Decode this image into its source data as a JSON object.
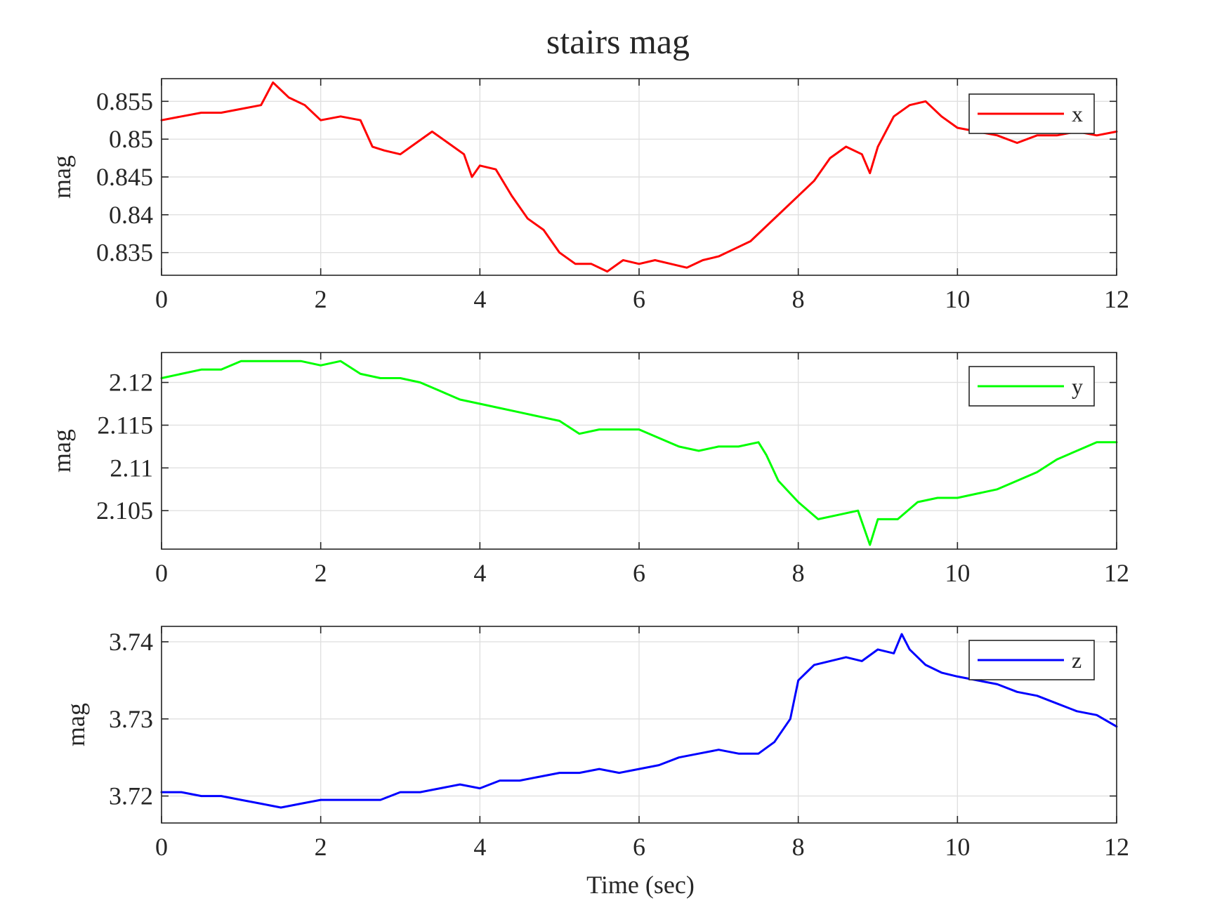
{
  "chart_data": [
    {
      "type": "line",
      "title": "stairs mag",
      "xlabel": "",
      "ylabel": "mag",
      "xlim": [
        0,
        12
      ],
      "ylim": [
        0.832,
        0.858
      ],
      "xticks": [
        "0",
        "2",
        "4",
        "6",
        "8",
        "10",
        "12"
      ],
      "yticks": [
        "0.835",
        "0.84",
        "0.845",
        "0.85",
        "0.855"
      ],
      "ytick_values": [
        0.835,
        0.84,
        0.845,
        0.85,
        0.855
      ],
      "grid": true,
      "legend_position": "top-right",
      "series": [
        {
          "name": "x",
          "color": "#ff0000",
          "x": [
            0,
            0.25,
            0.5,
            0.75,
            1,
            1.25,
            1.4,
            1.6,
            1.8,
            2,
            2.25,
            2.5,
            2.65,
            2.8,
            3,
            3.2,
            3.4,
            3.6,
            3.8,
            3.9,
            4,
            4.2,
            4.4,
            4.6,
            4.8,
            5,
            5.2,
            5.4,
            5.6,
            5.8,
            6,
            6.2,
            6.4,
            6.6,
            6.8,
            7,
            7.2,
            7.4,
            7.6,
            7.8,
            8,
            8.2,
            8.4,
            8.6,
            8.8,
            8.9,
            9,
            9.2,
            9.4,
            9.6,
            9.8,
            10,
            10.25,
            10.5,
            10.75,
            11,
            11.25,
            11.5,
            11.75,
            12
          ],
          "y": [
            0.8525,
            0.853,
            0.8535,
            0.8535,
            0.854,
            0.8545,
            0.8575,
            0.8555,
            0.8545,
            0.8525,
            0.853,
            0.8525,
            0.849,
            0.8485,
            0.848,
            0.8495,
            0.851,
            0.8495,
            0.848,
            0.845,
            0.8465,
            0.846,
            0.8425,
            0.8395,
            0.838,
            0.835,
            0.8335,
            0.8335,
            0.8325,
            0.834,
            0.8335,
            0.834,
            0.8335,
            0.833,
            0.834,
            0.8345,
            0.8355,
            0.8365,
            0.8385,
            0.8405,
            0.8425,
            0.8445,
            0.8475,
            0.849,
            0.848,
            0.8455,
            0.849,
            0.853,
            0.8545,
            0.855,
            0.853,
            0.8515,
            0.851,
            0.8505,
            0.8495,
            0.8505,
            0.8505,
            0.851,
            0.8505,
            0.851
          ]
        }
      ]
    },
    {
      "type": "line",
      "title": "",
      "xlabel": "",
      "ylabel": "mag",
      "xlim": [
        0,
        12
      ],
      "ylim": [
        2.1005,
        2.1235
      ],
      "xticks": [
        "0",
        "2",
        "4",
        "6",
        "8",
        "10",
        "12"
      ],
      "yticks": [
        "2.105",
        "2.11",
        "2.115",
        "2.12"
      ],
      "ytick_values": [
        2.105,
        2.11,
        2.115,
        2.12
      ],
      "grid": true,
      "legend_position": "top-right",
      "series": [
        {
          "name": "y",
          "color": "#00ff00",
          "x": [
            0,
            0.25,
            0.5,
            0.75,
            1,
            1.25,
            1.5,
            1.75,
            2,
            2.25,
            2.5,
            2.75,
            3,
            3.25,
            3.5,
            3.75,
            4,
            4.25,
            4.5,
            4.75,
            5,
            5.25,
            5.5,
            5.75,
            6,
            6.25,
            6.5,
            6.75,
            7,
            7.25,
            7.5,
            7.6,
            7.75,
            8,
            8.25,
            8.5,
            8.75,
            8.9,
            9,
            9.25,
            9.5,
            9.75,
            10,
            10.25,
            10.5,
            10.75,
            11,
            11.25,
            11.5,
            11.75,
            12
          ],
          "y": [
            2.1205,
            2.121,
            2.1215,
            2.1215,
            2.1225,
            2.1225,
            2.1225,
            2.1225,
            2.122,
            2.1225,
            2.121,
            2.1205,
            2.1205,
            2.12,
            2.119,
            2.118,
            2.1175,
            2.117,
            2.1165,
            2.116,
            2.1155,
            2.114,
            2.1145,
            2.1145,
            2.1145,
            2.1135,
            2.1125,
            2.112,
            2.1125,
            2.1125,
            2.113,
            2.1115,
            2.1085,
            2.106,
            2.104,
            2.1045,
            2.105,
            2.101,
            2.104,
            2.104,
            2.106,
            2.1065,
            2.1065,
            2.107,
            2.1075,
            2.1085,
            2.1095,
            2.111,
            2.112,
            2.113,
            2.113
          ]
        }
      ]
    },
    {
      "type": "line",
      "title": "",
      "xlabel": "Time (sec)",
      "ylabel": "mag",
      "xlim": [
        0,
        12
      ],
      "ylim": [
        3.7165,
        3.742
      ],
      "xticks": [
        "0",
        "2",
        "4",
        "6",
        "8",
        "10",
        "12"
      ],
      "yticks": [
        "3.72",
        "3.73",
        "3.74"
      ],
      "ytick_values": [
        3.72,
        3.73,
        3.74
      ],
      "grid": true,
      "legend_position": "top-right",
      "series": [
        {
          "name": "z",
          "color": "#0000ff",
          "x": [
            0,
            0.25,
            0.5,
            0.75,
            1,
            1.25,
            1.5,
            1.75,
            2,
            2.25,
            2.5,
            2.75,
            3,
            3.25,
            3.5,
            3.75,
            4,
            4.25,
            4.5,
            4.75,
            5,
            5.25,
            5.5,
            5.75,
            6,
            6.25,
            6.5,
            6.75,
            7,
            7.25,
            7.5,
            7.7,
            7.9,
            8,
            8.2,
            8.4,
            8.6,
            8.8,
            9,
            9.2,
            9.3,
            9.4,
            9.6,
            9.8,
            10,
            10.25,
            10.5,
            10.75,
            11,
            11.25,
            11.5,
            11.75,
            12
          ],
          "y": [
            3.7205,
            3.7205,
            3.72,
            3.72,
            3.7195,
            3.719,
            3.7185,
            3.719,
            3.7195,
            3.7195,
            3.7195,
            3.7195,
            3.7205,
            3.7205,
            3.721,
            3.7215,
            3.721,
            3.722,
            3.722,
            3.7225,
            3.723,
            3.723,
            3.7235,
            3.723,
            3.7235,
            3.724,
            3.725,
            3.7255,
            3.726,
            3.7255,
            3.7255,
            3.727,
            3.73,
            3.735,
            3.737,
            3.7375,
            3.738,
            3.7375,
            3.739,
            3.7385,
            3.741,
            3.739,
            3.737,
            3.736,
            3.7355,
            3.735,
            3.7345,
            3.7335,
            3.733,
            3.732,
            3.731,
            3.7305,
            3.729
          ]
        }
      ]
    }
  ]
}
